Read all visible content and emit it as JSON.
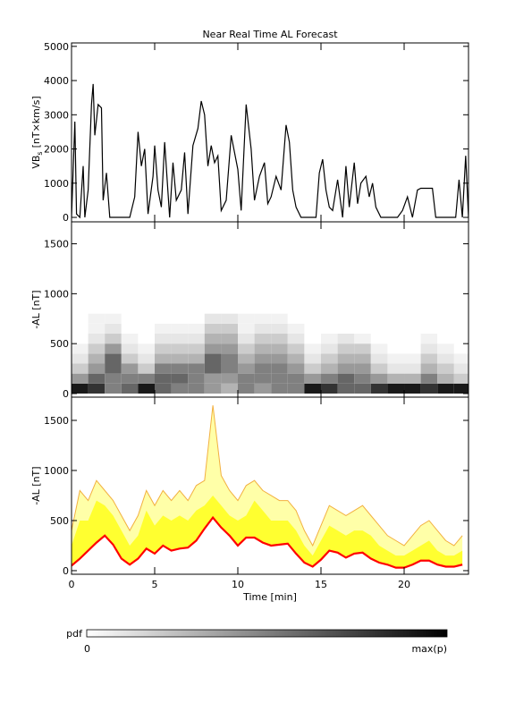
{
  "chart_data": [
    {
      "type": "line",
      "title": "Near Real Time AL Forecast",
      "y_label": "VB",
      "y_label_sub": "s",
      "y_label_rest": "[nT×km/s]",
      "xlim": [
        0,
        23.87
      ],
      "xticks": [
        0,
        5,
        10,
        15,
        20
      ],
      "show_xtick_labels": false,
      "ylim": [
        -130,
        5100
      ],
      "yticks": [
        0,
        1000,
        2000,
        3000,
        4000,
        5000
      ],
      "color": "#000000",
      "x": [
        0,
        0.2,
        0.3,
        0.5,
        0.7,
        0.8,
        1.0,
        1.2,
        1.3,
        1.4,
        1.6,
        1.8,
        1.9,
        2.1,
        2.3,
        3.5,
        3.8,
        4.0,
        4.2,
        4.4,
        4.6,
        4.9,
        5.0,
        5.2,
        5.4,
        5.6,
        5.9,
        6.1,
        6.3,
        6.6,
        6.8,
        7.0,
        7.3,
        7.6,
        7.8,
        8.0,
        8.2,
        8.4,
        8.6,
        8.8,
        9.0,
        9.3,
        9.6,
        10.0,
        10.2,
        10.5,
        10.8,
        11.0,
        11.3,
        11.6,
        11.8,
        12.0,
        12.3,
        12.6,
        12.9,
        13.1,
        13.3,
        13.5,
        13.8,
        14.7,
        14.9,
        15.1,
        15.3,
        15.5,
        15.7,
        16.0,
        16.3,
        16.5,
        16.7,
        17.0,
        17.2,
        17.4,
        17.7,
        17.9,
        18.1,
        18.3,
        18.6,
        19.6,
        19.9,
        20.2,
        20.5,
        20.8,
        21.0,
        21.7,
        21.9,
        23.1,
        23.3,
        23.5,
        23.7,
        23.87
      ],
      "values": [
        0,
        2800,
        100,
        0,
        1500,
        0,
        800,
        3300,
        3900,
        2400,
        3300,
        3200,
        500,
        1300,
        0,
        0,
        600,
        2500,
        1500,
        2000,
        100,
        1200,
        2100,
        800,
        300,
        2200,
        0,
        1600,
        500,
        800,
        1900,
        100,
        2100,
        2600,
        3400,
        3000,
        1500,
        2100,
        1600,
        1800,
        200,
        500,
        2400,
        1400,
        200,
        3300,
        2000,
        500,
        1200,
        1600,
        400,
        600,
        1200,
        800,
        2700,
        2200,
        800,
        300,
        0,
        0,
        1300,
        1700,
        800,
        300,
        200,
        1100,
        0,
        1500,
        300,
        1600,
        400,
        1000,
        1200,
        600,
        1000,
        300,
        0,
        0,
        200,
        600,
        0,
        800,
        850,
        850,
        0,
        0,
        1100,
        0,
        1800,
        0
      ]
    },
    {
      "type": "heatmap",
      "y_label": "-AL [nT]",
      "xlim": [
        0,
        23.87
      ],
      "xticks": [
        0,
        5,
        10,
        15,
        20
      ],
      "show_xtick_labels": false,
      "ylim": [
        -36,
        1720
      ],
      "yticks": [
        0,
        500,
        1000,
        1500
      ],
      "xbins": [
        0,
        1,
        2,
        3,
        4,
        5,
        6,
        7,
        8,
        9,
        10,
        11,
        12,
        13,
        14,
        15,
        16,
        17,
        18,
        19,
        20,
        21,
        22,
        23,
        23.87
      ],
      "ybins": [
        0,
        100,
        200,
        300,
        400,
        500,
        600,
        700,
        800
      ],
      "z": [
        [
          0.9,
          0.8,
          0.5,
          0.6,
          0.9,
          0.6,
          0.5,
          0.5,
          0.4,
          0.3,
          0.5,
          0.4,
          0.5,
          0.5,
          0.9,
          0.8,
          0.6,
          0.6,
          0.8,
          0.9,
          0.9,
          0.8,
          0.9,
          0.9
        ],
        [
          0.4,
          0.6,
          0.5,
          0.5,
          0.5,
          0.6,
          0.6,
          0.5,
          0.4,
          0.4,
          0.5,
          0.5,
          0.5,
          0.5,
          0.4,
          0.5,
          0.6,
          0.5,
          0.4,
          0.3,
          0.3,
          0.5,
          0.3,
          0.2
        ],
        [
          0.2,
          0.4,
          0.6,
          0.4,
          0.2,
          0.5,
          0.5,
          0.5,
          0.6,
          0.5,
          0.4,
          0.5,
          0.5,
          0.4,
          0.2,
          0.3,
          0.4,
          0.4,
          0.2,
          0.1,
          0.1,
          0.3,
          0.2,
          0.1
        ],
        [
          0.1,
          0.3,
          0.6,
          0.2,
          0.1,
          0.3,
          0.3,
          0.3,
          0.6,
          0.5,
          0.3,
          0.4,
          0.4,
          0.3,
          0.1,
          0.2,
          0.3,
          0.3,
          0.1,
          0.05,
          0.05,
          0.2,
          0.1,
          0.05
        ],
        [
          0.05,
          0.2,
          0.4,
          0.1,
          0.05,
          0.2,
          0.2,
          0.2,
          0.4,
          0.4,
          0.2,
          0.3,
          0.3,
          0.2,
          0.05,
          0.1,
          0.2,
          0.2,
          0.05,
          0,
          0,
          0.1,
          0.05,
          0
        ],
        [
          0,
          0.1,
          0.2,
          0.05,
          0,
          0.1,
          0.1,
          0.1,
          0.3,
          0.3,
          0.1,
          0.2,
          0.2,
          0.1,
          0,
          0.05,
          0.1,
          0.05,
          0,
          0,
          0,
          0.05,
          0,
          0
        ],
        [
          0,
          0.05,
          0.1,
          0,
          0,
          0.05,
          0.05,
          0.05,
          0.2,
          0.2,
          0.05,
          0.1,
          0.1,
          0.05,
          0,
          0,
          0,
          0,
          0,
          0,
          0,
          0,
          0,
          0
        ],
        [
          0,
          0.05,
          0.05,
          0,
          0,
          0,
          0,
          0,
          0.1,
          0.1,
          0.05,
          0.05,
          0.05,
          0,
          0,
          0,
          0,
          0,
          0,
          0,
          0,
          0,
          0,
          0
        ]
      ]
    },
    {
      "type": "band",
      "y_label": "-AL [nT]",
      "x_label": "Time [min]",
      "xlim": [
        0,
        23.87
      ],
      "xticks": [
        0,
        5,
        10,
        15,
        20
      ],
      "show_xtick_labels": true,
      "ylim": [
        -36,
        1732
      ],
      "yticks": [
        0,
        500,
        1000,
        1500
      ],
      "x": [
        0,
        0.5,
        1,
        1.5,
        2,
        2.5,
        3,
        3.5,
        4,
        4.5,
        5,
        5.5,
        6,
        6.5,
        7,
        7.5,
        8,
        8.5,
        9,
        9.5,
        10,
        10.5,
        11,
        11.5,
        12,
        12.5,
        13,
        13.5,
        14,
        14.5,
        15,
        15.5,
        16,
        16.5,
        17,
        17.5,
        18,
        18.5,
        19,
        19.5,
        20,
        20.5,
        21,
        21.5,
        22,
        22.5,
        23,
        23.5
      ],
      "series": [
        {
          "color": "#f2b040",
          "fill": "#ffffa8",
          "values": [
            400,
            800,
            700,
            900,
            800,
            700,
            550,
            400,
            550,
            800,
            650,
            800,
            700,
            800,
            700,
            850,
            900,
            1650,
            950,
            800,
            700,
            850,
            900,
            800,
            750,
            700,
            700,
            600,
            400,
            250,
            450,
            650,
            600,
            550,
            600,
            650,
            550,
            450,
            350,
            300,
            250,
            350,
            450,
            500,
            400,
            300,
            250,
            350
          ]
        },
        {
          "fill": "#ffff30",
          "values": [
            250,
            500,
            500,
            700,
            650,
            550,
            400,
            250,
            350,
            600,
            450,
            550,
            500,
            550,
            500,
            600,
            650,
            750,
            650,
            550,
            500,
            550,
            700,
            600,
            500,
            500,
            500,
            400,
            250,
            150,
            300,
            450,
            400,
            350,
            400,
            400,
            350,
            250,
            200,
            150,
            150,
            200,
            250,
            300,
            200,
            150,
            150,
            200
          ]
        },
        {
          "color": "#ff0000",
          "fill": "#ffffff",
          "values": [
            50,
            120,
            200,
            280,
            350,
            260,
            120,
            60,
            120,
            220,
            170,
            250,
            200,
            220,
            230,
            300,
            420,
            530,
            430,
            350,
            250,
            330,
            330,
            280,
            250,
            260,
            270,
            170,
            80,
            40,
            110,
            200,
            180,
            130,
            170,
            180,
            120,
            80,
            60,
            30,
            30,
            60,
            100,
            100,
            60,
            40,
            40,
            60
          ]
        }
      ]
    }
  ],
  "colorbar": {
    "label": "pdf",
    "min_label": "0",
    "max_label": "max(p)"
  }
}
